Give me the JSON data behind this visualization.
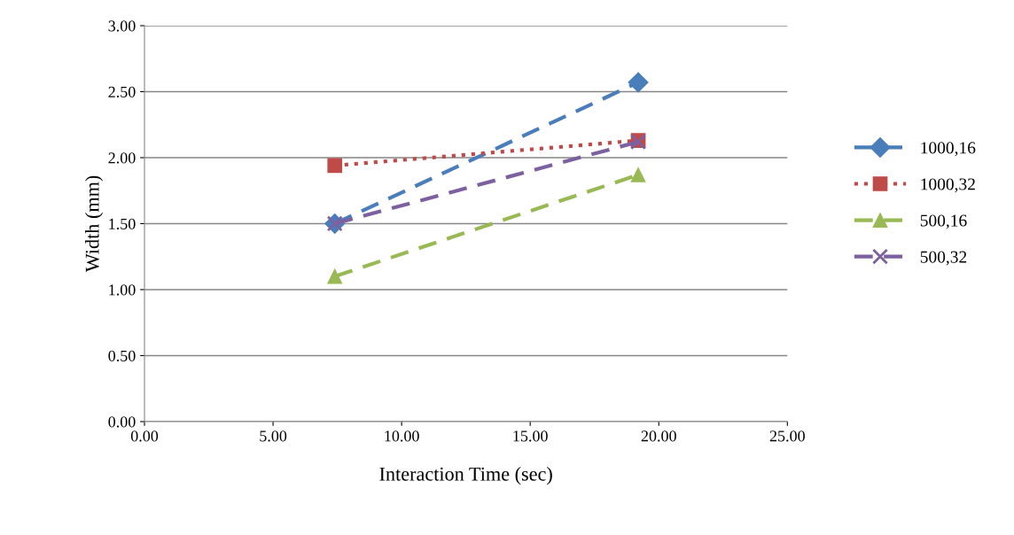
{
  "chart_data": {
    "type": "line",
    "xlabel": "Interaction Time (sec)",
    "ylabel": "Width (mm)",
    "x": [
      7.4,
      19.2
    ],
    "xlim": [
      0,
      25
    ],
    "xticks": [
      {
        "value": 0,
        "label": "0.00"
      },
      {
        "value": 5,
        "label": "5.00"
      },
      {
        "value": 10,
        "label": "10.00"
      },
      {
        "value": 15,
        "label": "15.00"
      },
      {
        "value": 20,
        "label": "20.00"
      },
      {
        "value": 25,
        "label": "25.00"
      }
    ],
    "ylim": [
      0,
      3
    ],
    "yticks": [
      {
        "value": 0,
        "label": "0.00"
      },
      {
        "value": 0.5,
        "label": "0.50"
      },
      {
        "value": 1,
        "label": "1.00"
      },
      {
        "value": 1.5,
        "label": "1.50"
      },
      {
        "value": 2,
        "label": "2.00"
      },
      {
        "value": 2.5,
        "label": "2.50"
      },
      {
        "value": 3,
        "label": "3.00"
      }
    ],
    "grid": "y",
    "legend": "right",
    "series": [
      {
        "name": "1000,16",
        "color": "#4a7ebb",
        "values": [
          1.5,
          2.57
        ],
        "marker": "diamond",
        "line_style": "dashed"
      },
      {
        "name": "1000,32",
        "color": "#be4b48",
        "values": [
          1.94,
          2.13
        ],
        "marker": "square",
        "line_style": "dotted"
      },
      {
        "name": "500,16",
        "color": "#98b954",
        "values": [
          1.1,
          1.87
        ],
        "marker": "triangle",
        "line_style": "dashed"
      },
      {
        "name": "500,32",
        "color": "#7d60a0",
        "values": [
          1.5,
          2.12
        ],
        "marker": "cross",
        "line_style": "dashed"
      }
    ]
  }
}
